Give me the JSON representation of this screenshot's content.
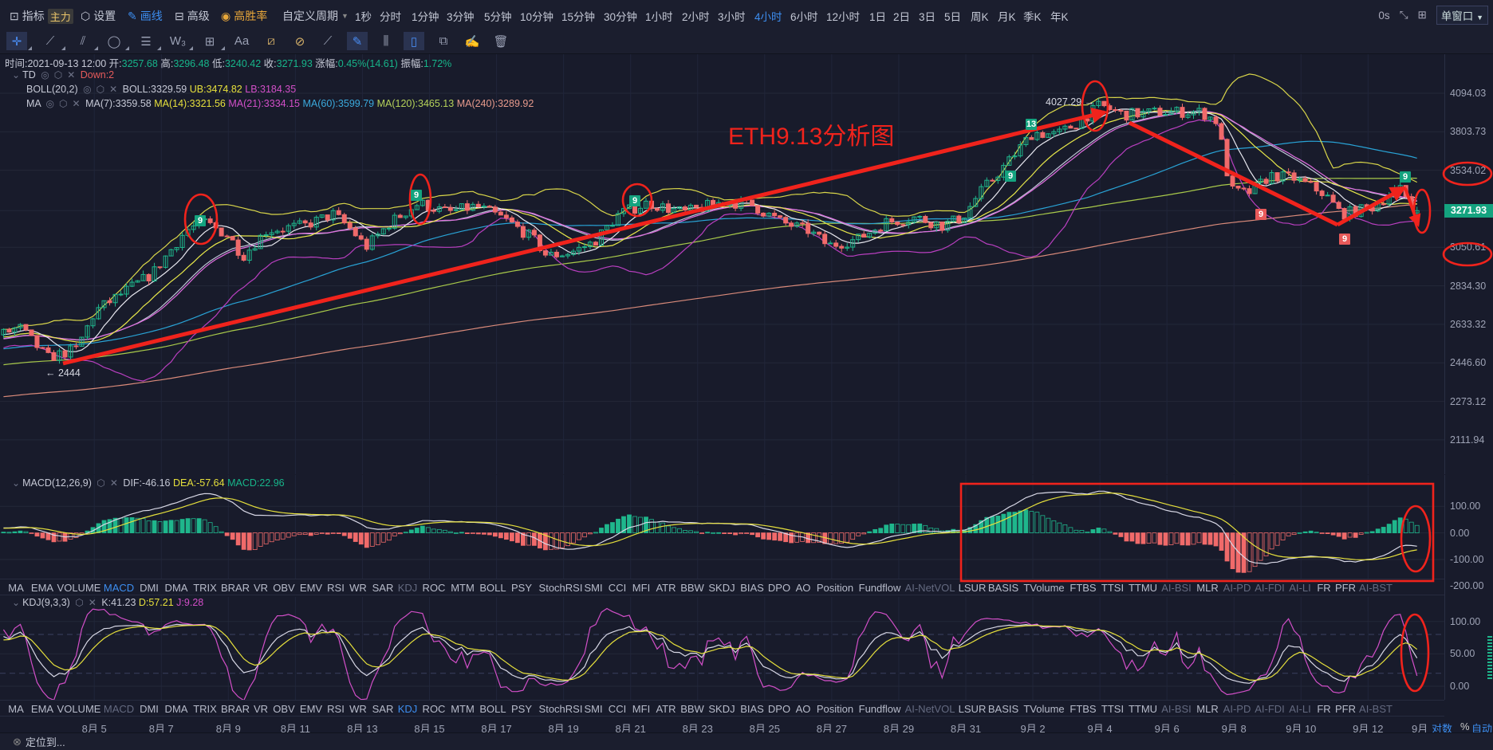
{
  "topbar": {
    "indicator_label": "指标",
    "main_badge": "主力",
    "settings_label": "设置",
    "draw_label": "画线",
    "advanced_label": "高级",
    "winrate_label": "高胜率",
    "custom_period_label": "自定义周期",
    "periods": [
      "1秒",
      "分时",
      "1分钟",
      "3分钟",
      "5分钟",
      "10分钟",
      "15分钟",
      "30分钟",
      "1小时",
      "2小时",
      "3小时",
      "4小时",
      "6小时",
      "12小时",
      "1日",
      "2日",
      "3日",
      "5日",
      "周K",
      "月K",
      "季K",
      "年K"
    ],
    "active_period": "4小时",
    "latency": "0s",
    "window_mode": "单窗口"
  },
  "info": {
    "time_label": "时间:",
    "time": "2021-09-13 12:00",
    "open_label": "开:",
    "open": "3257.68",
    "high_label": "高:",
    "high": "3296.48",
    "low_label": "低:",
    "low": "3240.42",
    "close_label": "收:",
    "close": "3271.93",
    "change_label": "涨幅:",
    "change": "0.45%(14.61)",
    "amplitude_label": "振幅:",
    "amplitude": "1.72%"
  },
  "indicators": {
    "td": {
      "name": "TD",
      "value": "Down:2"
    },
    "boll": {
      "name": "BOLL(20,2)",
      "mid": "BOLL:3329.59",
      "ub": "UB:3474.82",
      "lb": "LB:3184.35"
    },
    "ma": {
      "name": "MA",
      "ma7": "MA(7):3359.58",
      "ma14": "MA(14):3321.56",
      "ma21": "MA(21):3334.15",
      "ma60": "MA(60):3599.79",
      "ma120": "MA(120):3465.13",
      "ma240": "MA(240):3289.92"
    },
    "macd": {
      "name": "MACD(12,26,9)",
      "dif": "DIF:-46.16",
      "dea": "DEA:-57.64",
      "macd": "MACD:22.96"
    },
    "kdj": {
      "name": "KDJ(9,3,3)",
      "k": "K:41.23",
      "d": "D:57.21",
      "j": "J:9.28"
    }
  },
  "price_axis": {
    "labels": [
      "4094.03",
      "3803.73",
      "3534.02",
      "3271.93",
      "3050.61",
      "2834.30",
      "2633.32",
      "2446.60",
      "2273.12",
      "2111.94"
    ],
    "current_price": "3271.93"
  },
  "macd_axis": [
    "100.00",
    "0.00",
    "-100.00",
    "-200.00"
  ],
  "kdj_axis": [
    "100.00",
    "50.00",
    "0.00"
  ],
  "indicator_tabs": [
    {
      "label": "MA"
    },
    {
      "label": "EMA"
    },
    {
      "label": "VOLUME"
    },
    {
      "label": "MACD"
    },
    {
      "label": "DMI"
    },
    {
      "label": "DMA"
    },
    {
      "label": "TRIX"
    },
    {
      "label": "BRAR"
    },
    {
      "label": "VR"
    },
    {
      "label": "OBV"
    },
    {
      "label": "EMV"
    },
    {
      "label": "RSI"
    },
    {
      "label": "WR"
    },
    {
      "label": "SAR"
    },
    {
      "label": "KDJ"
    },
    {
      "label": "ROC"
    },
    {
      "label": "MTM"
    },
    {
      "label": "BOLL"
    },
    {
      "label": "PSY"
    },
    {
      "label": "StochRSI"
    },
    {
      "label": "SMI"
    },
    {
      "label": "CCI"
    },
    {
      "label": "MFI"
    },
    {
      "label": "ATR"
    },
    {
      "label": "BBW"
    },
    {
      "label": "SKDJ"
    },
    {
      "label": "BIAS"
    },
    {
      "label": "DPO"
    },
    {
      "label": "AO"
    },
    {
      "label": "Position"
    },
    {
      "label": "Fundflow"
    },
    {
      "label": "AI-NetVOL"
    },
    {
      "label": "LSUR"
    },
    {
      "label": "BASIS"
    },
    {
      "label": "TVolume"
    },
    {
      "label": "FTBS"
    },
    {
      "label": "TTSI"
    },
    {
      "label": "TTMU"
    },
    {
      "label": "AI-BSI"
    },
    {
      "label": "MLR"
    },
    {
      "label": "AI-PD"
    },
    {
      "label": "AI-FDI"
    },
    {
      "label": "AI-LI"
    },
    {
      "label": "FR"
    },
    {
      "label": "PFR"
    },
    {
      "label": "AI-BST"
    }
  ],
  "date_axis": [
    "8月 5",
    "8月 7",
    "8月 9",
    "8月 11",
    "8月 13",
    "8月 15",
    "8月 17",
    "8月 19",
    "8月 21",
    "8月 23",
    "8月 25",
    "8月 27",
    "8月 29",
    "8月 31",
    "9月 2",
    "9月 4",
    "9月 6",
    "9月 8",
    "9月 10",
    "9月 12",
    "9月"
  ],
  "axis_modes": {
    "log": "对数",
    "percent": "%",
    "auto": "自动"
  },
  "status_bar": {
    "locate": "定位到..."
  },
  "annotations": {
    "title": "ETH9.13分析图",
    "high_marker": "4027.29",
    "low_marker": "2444",
    "td_labels": [
      "9",
      "9",
      "9",
      "13",
      "9",
      "9",
      "9",
      "9"
    ],
    "color": "#f0231c"
  },
  "colors": {
    "up": "#1fb68c",
    "down": "#f06a6a",
    "accent": "#3d8ef0",
    "current_price_bg": "#14a37f"
  },
  "chart_data": {
    "type": "candlestick",
    "symbol": "ETH",
    "interval": "4h",
    "scale": "log",
    "ylim": [
      2111.94,
      4094.03
    ],
    "x_unit": "days since Aug 5 00:00",
    "anchors": [
      [
        -2.8,
        2580
      ],
      [
        -2.24,
        2620
      ],
      [
        -1.39,
        2470
      ],
      [
        -0.54,
        2510
      ],
      [
        0.03,
        2700
      ],
      [
        0.88,
        2800
      ],
      [
        1.73,
        2900
      ],
      [
        2.73,
        3150
      ],
      [
        3.3,
        3200
      ],
      [
        4.0,
        3120
      ],
      [
        4.43,
        3000
      ],
      [
        5.14,
        3150
      ],
      [
        6.28,
        3180
      ],
      [
        7.13,
        3250
      ],
      [
        7.7,
        3150
      ],
      [
        8.1,
        3050
      ],
      [
        8.84,
        3200
      ],
      [
        9.69,
        3320
      ],
      [
        10.54,
        3260
      ],
      [
        11.39,
        3300
      ],
      [
        12.24,
        3220
      ],
      [
        13.1,
        3100
      ],
      [
        13.5,
        3000
      ],
      [
        14.2,
        3020
      ],
      [
        14.9,
        3080
      ],
      [
        15.65,
        3250
      ],
      [
        16.5,
        3320
      ],
      [
        17.6,
        3260
      ],
      [
        18.8,
        3330
      ],
      [
        19.6,
        3310
      ],
      [
        20.5,
        3200
      ],
      [
        21.3,
        3150
      ],
      [
        21.9,
        3060
      ],
      [
        22.8,
        3100
      ],
      [
        23.6,
        3200
      ],
      [
        24.5,
        3230
      ],
      [
        25.3,
        3180
      ],
      [
        25.9,
        3230
      ],
      [
        26.4,
        3380
      ],
      [
        27.3,
        3600
      ],
      [
        28.0,
        3800
      ],
      [
        28.7,
        3780
      ],
      [
        29.4,
        3880
      ],
      [
        30.0,
        4000
      ],
      [
        30.7,
        3930
      ],
      [
        31.8,
        3950
      ],
      [
        33.0,
        3950
      ],
      [
        33.5,
        3880
      ],
      [
        33.9,
        3400
      ],
      [
        34.4,
        3380
      ],
      [
        35.1,
        3500
      ],
      [
        35.8,
        3480
      ],
      [
        36.7,
        3380
      ],
      [
        37.2,
        3250
      ],
      [
        38.1,
        3290
      ],
      [
        38.9,
        3420
      ],
      [
        39.46,
        3271.93
      ]
    ],
    "last_candle": {
      "open": 3257.68,
      "high": 3296.48,
      "low": 3240.42,
      "close": 3271.93
    }
  }
}
